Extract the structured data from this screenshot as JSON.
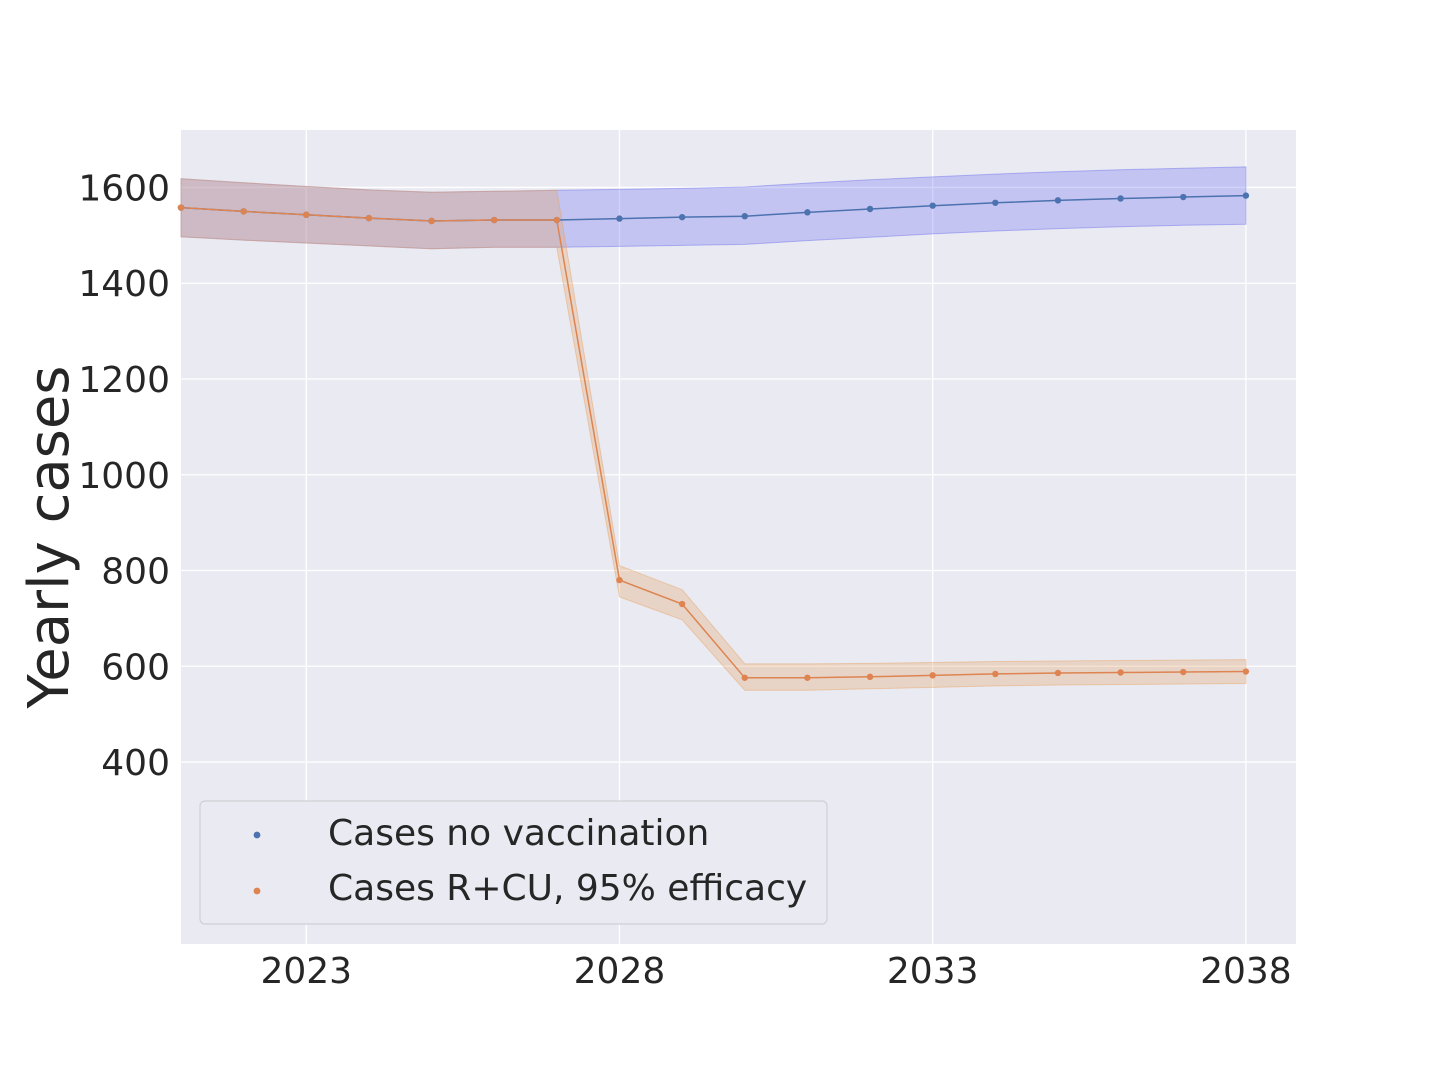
{
  "chart_data": {
    "type": "line",
    "title": "",
    "xlabel": "",
    "ylabel": "Yearly cases",
    "xlim": [
      2021.0,
      2038.8
    ],
    "ylim": [
      20,
      1720
    ],
    "x_ticks": [
      "2023",
      "2028",
      "2033",
      "2038"
    ],
    "y_ticks": [
      "400",
      "600",
      "800",
      "1000",
      "1200",
      "1400",
      "1600"
    ],
    "grid": true,
    "legend_position": "lower-left",
    "x": [
      2021,
      2022,
      2023,
      2024,
      2025,
      2026,
      2027,
      2028,
      2029,
      2030,
      2031,
      2032,
      2033,
      2034,
      2035,
      2036,
      2037,
      2038
    ],
    "series": [
      {
        "name": "Cases no vaccination",
        "color": "#4c72b0",
        "band_color": "#6a6cf0",
        "values": [
          1558,
          1550,
          1543,
          1536,
          1530,
          1532,
          1532,
          1535,
          1538,
          1540,
          1548,
          1555,
          1562,
          1568,
          1573,
          1577,
          1580,
          1583
        ],
        "lower": [
          1497,
          1490,
          1484,
          1478,
          1472,
          1475,
          1475,
          1477,
          1479,
          1481,
          1489,
          1496,
          1503,
          1509,
          1514,
          1518,
          1521,
          1523
        ],
        "upper": [
          1618,
          1610,
          1602,
          1595,
          1590,
          1592,
          1594,
          1596,
          1598,
          1601,
          1609,
          1616,
          1622,
          1628,
          1633,
          1637,
          1640,
          1643
        ]
      },
      {
        "name": "Cases R+CU, 95% efficacy",
        "color": "#dd8452",
        "band_color": "#e6a25f",
        "values": [
          1558,
          1550,
          1543,
          1536,
          1530,
          1532,
          1532,
          780,
          730,
          576,
          576,
          578,
          581,
          584,
          586,
          587,
          588,
          589
        ],
        "lower": [
          1497,
          1490,
          1484,
          1478,
          1472,
          1475,
          1475,
          745,
          697,
          550,
          550,
          553,
          556,
          559,
          561,
          562,
          563,
          564
        ],
        "upper": [
          1618,
          1610,
          1602,
          1595,
          1590,
          1592,
          1594,
          810,
          760,
          605,
          605,
          606,
          608,
          610,
          611,
          612,
          613,
          614
        ]
      }
    ]
  }
}
